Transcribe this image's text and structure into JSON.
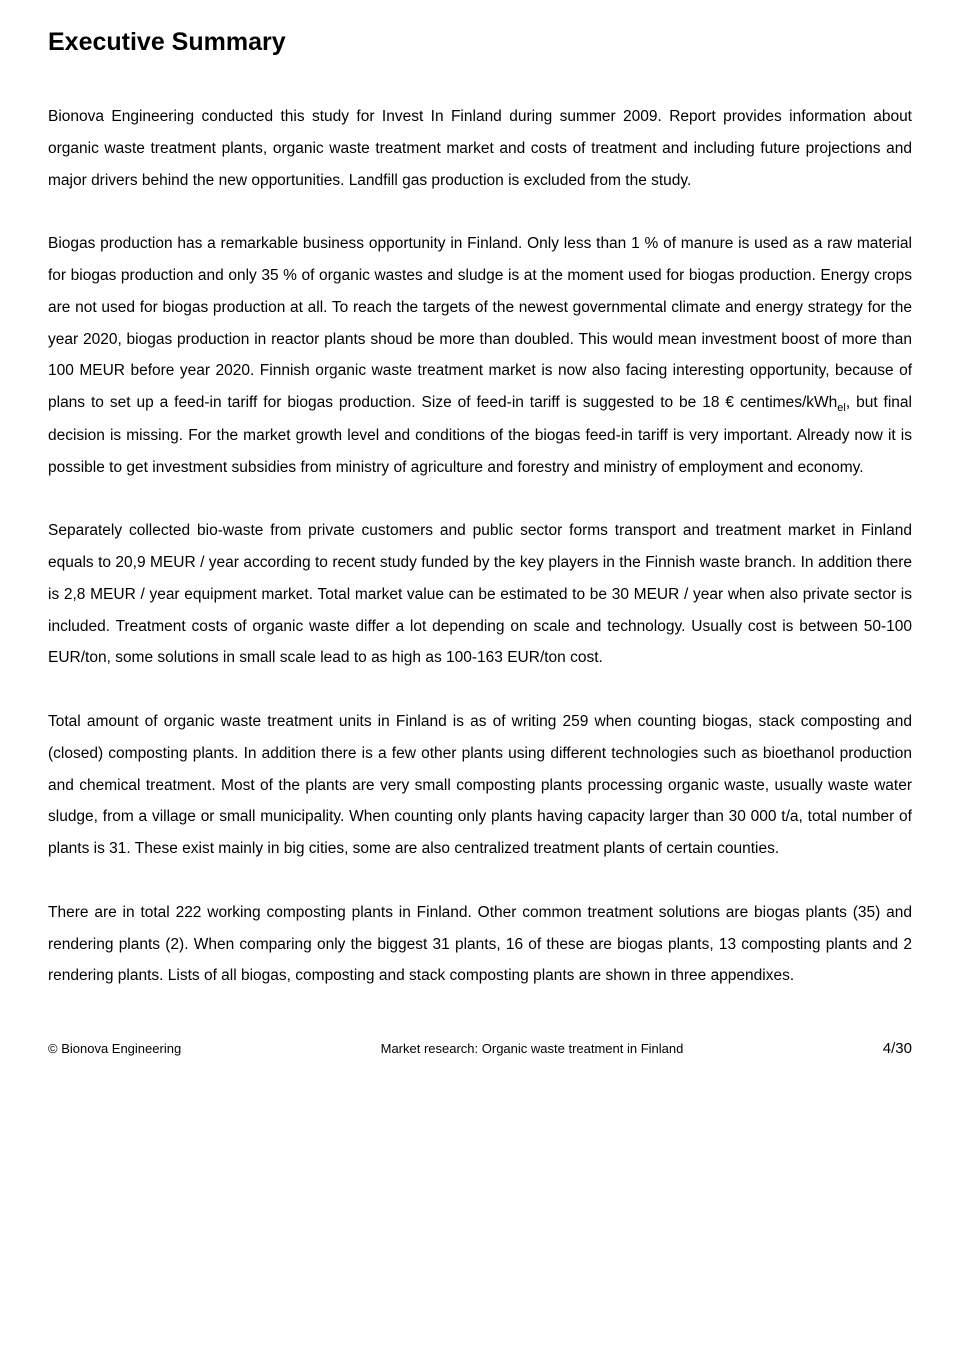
{
  "title": "Executive Summary",
  "paragraphs": {
    "p1": "Bionova Engineering conducted this study for Invest In Finland during summer 2009. Report provides information about organic waste treatment plants, organic waste treatment market and costs of treatment and including future projections and major drivers behind the new opportunities. Landfill gas production is excluded from the study.",
    "p2a": "Biogas production has a remarkable business opportunity in Finland. Only less than 1 % of manure is used as a raw material for biogas production and only 35 % of organic wastes and sludge is at the moment used for biogas production. Energy crops are not used for biogas production at all. To reach the targets of the newest governmental climate and energy strategy for the year 2020, biogas production in reactor plants shoud be more than doubled. This would mean investment boost of more than 100 MEUR before year 2020. Finnish organic waste treatment market is now also facing interesting opportunity, because of plans to set up a feed-in tariff for biogas production. Size of feed-in tariff is suggested to be 18 € centimes/kWh",
    "p2sub": "el",
    "p2b": ", but final decision is missing. For the market growth level and conditions of the biogas feed-in tariff is very important. Already now it is possible to get investment subsidies from ministry of agriculture and forestry and ministry of employment and economy.",
    "p3": "Separately collected bio-waste from private customers and public sector forms transport and treatment market in Finland equals to 20,9 MEUR / year according to recent study funded by the key players in the Finnish waste branch. In addition there is 2,8 MEUR / year equipment market. Total market value can be estimated to be 30 MEUR / year when also private sector is included. Treatment costs of organic waste differ a lot depending on scale and technology. Usually cost is between 50-100 EUR/ton, some solutions in small scale lead to as high as 100-163 EUR/ton cost.",
    "p4": "Total amount of organic waste treatment units in Finland is as of writing 259 when counting biogas, stack composting and (closed) composting plants. In addition there is a few other plants using different technologies such as bioethanol production and chemical treatment. Most of the plants are very small composting plants processing organic waste, usually waste water sludge, from a village or small municipality. When counting only plants having capacity larger than 30 000 t/a, total number of plants is 31. These exist mainly in big cities, some are also centralized treatment plants of certain counties.",
    "p5": "There are in total 222 working composting plants in Finland. Other common treatment solutions are biogas plants (35) and rendering plants (2). When comparing only the biggest 31 plants, 16 of these are biogas plants, 13 composting plants and 2 rendering plants. Lists of all biogas, composting and stack composting plants are shown in three appendixes."
  },
  "footer": {
    "left": "© Bionova Engineering",
    "center": "Market research: Organic waste treatment in Finland",
    "right": "4/30"
  }
}
